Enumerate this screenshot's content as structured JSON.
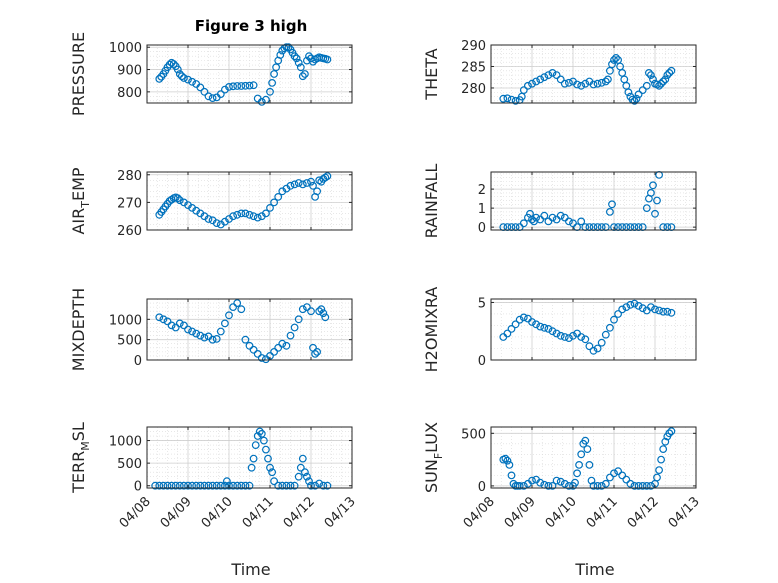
{
  "chart_data": {
    "title": "Figure 3 high",
    "marker_color": "#0072BD",
    "xlabel": "Time",
    "x_ticks": [
      "04/08",
      "04/09",
      "04/10",
      "04/11",
      "04/12",
      "04/13"
    ],
    "panels": [
      {
        "id": "pressure",
        "ylabel": "PRESSURE",
        "ylim": [
          750,
          1010
        ],
        "yticks": [
          800,
          900,
          1000
        ],
        "x": [
          0.3,
          0.35,
          0.4,
          0.45,
          0.5,
          0.55,
          0.6,
          0.65,
          0.7,
          0.75,
          0.8,
          0.85,
          0.9,
          1.0,
          1.1,
          1.2,
          1.3,
          1.4,
          1.5,
          1.6,
          1.7,
          1.8,
          1.9,
          2.0,
          2.1,
          2.2,
          2.3,
          2.4,
          2.5,
          2.6,
          2.7,
          2.8,
          2.9,
          3.0,
          3.05,
          3.1,
          3.15,
          3.2,
          3.25,
          3.3,
          3.35,
          3.4,
          3.45,
          3.5,
          3.55,
          3.6,
          3.65,
          3.7,
          3.75,
          3.8,
          3.85,
          3.9,
          3.95,
          4.0,
          4.05,
          4.1,
          4.15,
          4.2,
          4.25,
          4.3,
          4.35,
          4.4
        ],
        "y": [
          858,
          868,
          880,
          895,
          910,
          922,
          930,
          925,
          915,
          900,
          880,
          870,
          862,
          855,
          845,
          835,
          820,
          800,
          780,
          772,
          775,
          790,
          810,
          822,
          825,
          826,
          826,
          827,
          828,
          830,
          770,
          755,
          765,
          800,
          840,
          880,
          910,
          940,
          965,
          985,
          995,
          1000,
          1000,
          990,
          975,
          960,
          950,
          930,
          910,
          870,
          880,
          940,
          960,
          950,
          935,
          945,
          950,
          955,
          952,
          950,
          948,
          945
        ]
      },
      {
        "id": "theta",
        "ylabel": "THETA",
        "ylim": [
          276.5,
          290
        ],
        "yticks": [
          280,
          285,
          290
        ],
        "x": [
          0.3,
          0.4,
          0.5,
          0.6,
          0.7,
          0.75,
          0.8,
          0.9,
          1.0,
          1.1,
          1.2,
          1.3,
          1.4,
          1.5,
          1.6,
          1.7,
          1.8,
          1.9,
          2.0,
          2.1,
          2.2,
          2.3,
          2.4,
          2.5,
          2.6,
          2.7,
          2.8,
          2.85,
          2.9,
          2.95,
          3.0,
          3.05,
          3.1,
          3.15,
          3.2,
          3.25,
          3.3,
          3.35,
          3.4,
          3.45,
          3.5,
          3.55,
          3.6,
          3.7,
          3.8,
          3.85,
          3.9,
          3.95,
          4.0,
          4.05,
          4.1,
          4.15,
          4.2,
          4.25,
          4.3,
          4.35,
          4.4
        ],
        "y": [
          277.5,
          277.6,
          277.3,
          277.0,
          277.2,
          278.0,
          279.5,
          280.5,
          281.0,
          281.5,
          282.0,
          282.5,
          283.0,
          283.5,
          283.0,
          282.0,
          281.0,
          281.2,
          281.5,
          280.8,
          280.5,
          281.0,
          281.5,
          280.8,
          281.0,
          281.2,
          281.5,
          282.0,
          284.0,
          285.5,
          286.5,
          287.0,
          286.5,
          285.0,
          283.5,
          282.0,
          280.5,
          279.0,
          278.0,
          277.3,
          277.0,
          277.5,
          278.5,
          279.5,
          280.5,
          283.5,
          283.0,
          282.0,
          281.0,
          280.8,
          280.5,
          281.0,
          281.5,
          282.0,
          283.0,
          283.5,
          284.0
        ]
      },
      {
        "id": "air_temp",
        "ylabel": "AIR",
        "ylabel_sub": "T",
        "ylabel_tail": "EMP",
        "ylim": [
          260,
          281
        ],
        "yticks": [
          260,
          270,
          280
        ],
        "x": [
          0.3,
          0.35,
          0.4,
          0.45,
          0.5,
          0.55,
          0.6,
          0.65,
          0.7,
          0.75,
          0.8,
          0.9,
          1.0,
          1.1,
          1.2,
          1.3,
          1.4,
          1.5,
          1.6,
          1.7,
          1.8,
          1.9,
          2.0,
          2.1,
          2.2,
          2.3,
          2.4,
          2.5,
          2.6,
          2.7,
          2.8,
          2.9,
          3.0,
          3.1,
          3.2,
          3.3,
          3.4,
          3.5,
          3.6,
          3.7,
          3.8,
          3.9,
          4.0,
          4.05,
          4.1,
          4.15,
          4.2,
          4.25,
          4.3,
          4.35,
          4.4
        ],
        "y": [
          265.5,
          266.5,
          267.5,
          268.5,
          269.5,
          270.5,
          271.0,
          271.5,
          271.8,
          271.5,
          270.8,
          270.0,
          269.0,
          268.0,
          267.0,
          266.0,
          265.0,
          264.0,
          263.5,
          262.5,
          262.0,
          263.0,
          264.0,
          265.0,
          265.5,
          266.0,
          266.0,
          265.5,
          265.0,
          264.5,
          265.0,
          266.0,
          268.0,
          270.0,
          272.0,
          274.0,
          275.0,
          276.0,
          276.5,
          277.0,
          276.5,
          277.0,
          277.5,
          276.0,
          272.0,
          274.0,
          278.0,
          277.5,
          278.5,
          279.0,
          279.5
        ]
      },
      {
        "id": "rainfall",
        "ylabel": "RAINFALL",
        "ylim": [
          -0.15,
          2.9
        ],
        "yticks": [
          0,
          1,
          2
        ],
        "x": [
          0.3,
          0.4,
          0.5,
          0.6,
          0.7,
          0.8,
          0.9,
          0.95,
          1.0,
          1.05,
          1.1,
          1.2,
          1.3,
          1.4,
          1.5,
          1.6,
          1.7,
          1.8,
          1.9,
          2.0,
          2.1,
          2.2,
          2.3,
          2.4,
          2.5,
          2.6,
          2.7,
          2.8,
          2.9,
          2.95,
          3.0,
          3.1,
          3.2,
          3.3,
          3.4,
          3.5,
          3.6,
          3.7,
          3.8,
          3.85,
          3.9,
          3.95,
          4.0,
          4.05,
          4.1,
          4.2,
          4.3,
          4.4
        ],
        "y": [
          0,
          0,
          0,
          0,
          0,
          0.2,
          0.5,
          0.7,
          0.4,
          0.3,
          0.5,
          0.4,
          0.6,
          0.3,
          0.5,
          0.4,
          0.6,
          0.5,
          0.3,
          0.2,
          0.0,
          0.3,
          0.0,
          0,
          0,
          0,
          0,
          0,
          0.8,
          1.2,
          0,
          0,
          0,
          0,
          0,
          0,
          0,
          0,
          1.0,
          1.5,
          1.8,
          2.2,
          0.7,
          1.4,
          2.75,
          0,
          0,
          0
        ]
      },
      {
        "id": "mixdepth",
        "ylabel": "MIXDEPTH",
        "ylim": [
          0,
          1500
        ],
        "yticks": [
          0,
          500,
          1000
        ],
        "x": [
          0.3,
          0.4,
          0.5,
          0.6,
          0.7,
          0.8,
          0.9,
          1.0,
          1.1,
          1.2,
          1.3,
          1.4,
          1.5,
          1.6,
          1.7,
          1.8,
          1.9,
          2.0,
          2.1,
          2.2,
          2.3,
          2.4,
          2.5,
          2.6,
          2.7,
          2.8,
          2.9,
          3.0,
          3.1,
          3.2,
          3.3,
          3.4,
          3.5,
          3.6,
          3.7,
          3.8,
          3.9,
          4.0,
          4.05,
          4.1,
          4.15,
          4.2,
          4.25,
          4.3,
          4.35
        ],
        "y": [
          1050,
          1000,
          950,
          850,
          800,
          900,
          850,
          750,
          700,
          650,
          600,
          550,
          580,
          500,
          520,
          700,
          900,
          1100,
          1300,
          1400,
          1250,
          500,
          350,
          250,
          150,
          50,
          20,
          100,
          200,
          300,
          400,
          350,
          600,
          800,
          1000,
          1250,
          1300,
          1200,
          300,
          150,
          200,
          1200,
          1250,
          1150,
          1050
        ]
      },
      {
        "id": "h2omixra",
        "ylabel": "H2OMIXRA",
        "ylim": [
          0,
          5.3
        ],
        "yticks": [
          0,
          5
        ],
        "x": [
          0.3,
          0.4,
          0.5,
          0.6,
          0.7,
          0.8,
          0.9,
          1.0,
          1.1,
          1.2,
          1.3,
          1.4,
          1.5,
          1.6,
          1.7,
          1.8,
          1.9,
          2.0,
          2.1,
          2.2,
          2.3,
          2.4,
          2.5,
          2.6,
          2.7,
          2.8,
          2.9,
          3.0,
          3.1,
          3.2,
          3.3,
          3.4,
          3.5,
          3.6,
          3.7,
          3.8,
          3.9,
          4.0,
          4.1,
          4.2,
          4.3,
          4.4
        ],
        "y": [
          2.0,
          2.3,
          2.7,
          3.1,
          3.5,
          3.7,
          3.6,
          3.3,
          3.1,
          2.9,
          2.8,
          2.7,
          2.5,
          2.3,
          2.1,
          2.0,
          1.9,
          2.1,
          2.3,
          2.0,
          1.8,
          1.2,
          0.8,
          1.0,
          1.5,
          2.2,
          2.8,
          3.5,
          4.0,
          4.4,
          4.6,
          4.8,
          4.9,
          4.7,
          4.5,
          4.3,
          4.6,
          4.4,
          4.3,
          4.2,
          4.2,
          4.1
        ]
      },
      {
        "id": "terr_msl",
        "ylabel": "TERR",
        "ylabel_sub": "M",
        "ylabel_tail": "SL",
        "ylim": [
          -50,
          1300
        ],
        "yticks": [
          0,
          500,
          1000
        ],
        "x": [
          0.2,
          0.3,
          0.4,
          0.5,
          0.6,
          0.7,
          0.8,
          0.9,
          1.0,
          1.1,
          1.2,
          1.3,
          1.4,
          1.5,
          1.6,
          1.7,
          1.8,
          1.9,
          1.95,
          2.0,
          2.1,
          2.2,
          2.3,
          2.4,
          2.5,
          2.55,
          2.6,
          2.65,
          2.7,
          2.75,
          2.8,
          2.85,
          2.9,
          2.95,
          3.0,
          3.05,
          3.1,
          3.2,
          3.3,
          3.4,
          3.5,
          3.6,
          3.7,
          3.75,
          3.8,
          3.85,
          3.9,
          3.95,
          4.0,
          4.1,
          4.2,
          4.3,
          4.4
        ],
        "y": [
          0,
          0,
          0,
          0,
          0,
          0,
          0,
          0,
          0,
          0,
          0,
          0,
          0,
          0,
          0,
          0,
          0,
          0,
          100,
          0,
          0,
          0,
          0,
          0,
          0,
          400,
          600,
          900,
          1100,
          1200,
          1150,
          1000,
          800,
          600,
          400,
          300,
          100,
          0,
          0,
          0,
          0,
          0,
          200,
          400,
          600,
          300,
          200,
          100,
          0,
          0,
          50,
          0,
          0
        ]
      },
      {
        "id": "sun_flux",
        "ylabel": "SUN",
        "ylabel_sub": "F",
        "ylabel_tail": "LUX",
        "ylim": [
          -20,
          560
        ],
        "yticks": [
          0,
          500
        ],
        "x": [
          0.3,
          0.35,
          0.4,
          0.45,
          0.5,
          0.55,
          0.6,
          0.65,
          0.7,
          0.8,
          0.9,
          1.0,
          1.1,
          1.2,
          1.3,
          1.4,
          1.5,
          1.6,
          1.7,
          1.8,
          1.9,
          2.0,
          2.05,
          2.1,
          2.15,
          2.2,
          2.25,
          2.3,
          2.35,
          2.4,
          2.45,
          2.5,
          2.6,
          2.7,
          2.8,
          2.9,
          3.0,
          3.1,
          3.2,
          3.3,
          3.4,
          3.5,
          3.6,
          3.7,
          3.8,
          3.9,
          4.0,
          4.05,
          4.1,
          4.15,
          4.2,
          4.25,
          4.3,
          4.35,
          4.4
        ],
        "y": [
          250,
          260,
          240,
          200,
          100,
          20,
          0,
          0,
          0,
          0,
          20,
          50,
          60,
          30,
          10,
          0,
          0,
          50,
          40,
          20,
          0,
          0,
          30,
          120,
          200,
          300,
          400,
          430,
          350,
          200,
          50,
          0,
          0,
          0,
          20,
          80,
          120,
          140,
          100,
          60,
          20,
          0,
          0,
          0,
          0,
          0,
          20,
          80,
          150,
          250,
          350,
          420,
          470,
          500,
          520
        ]
      }
    ]
  }
}
